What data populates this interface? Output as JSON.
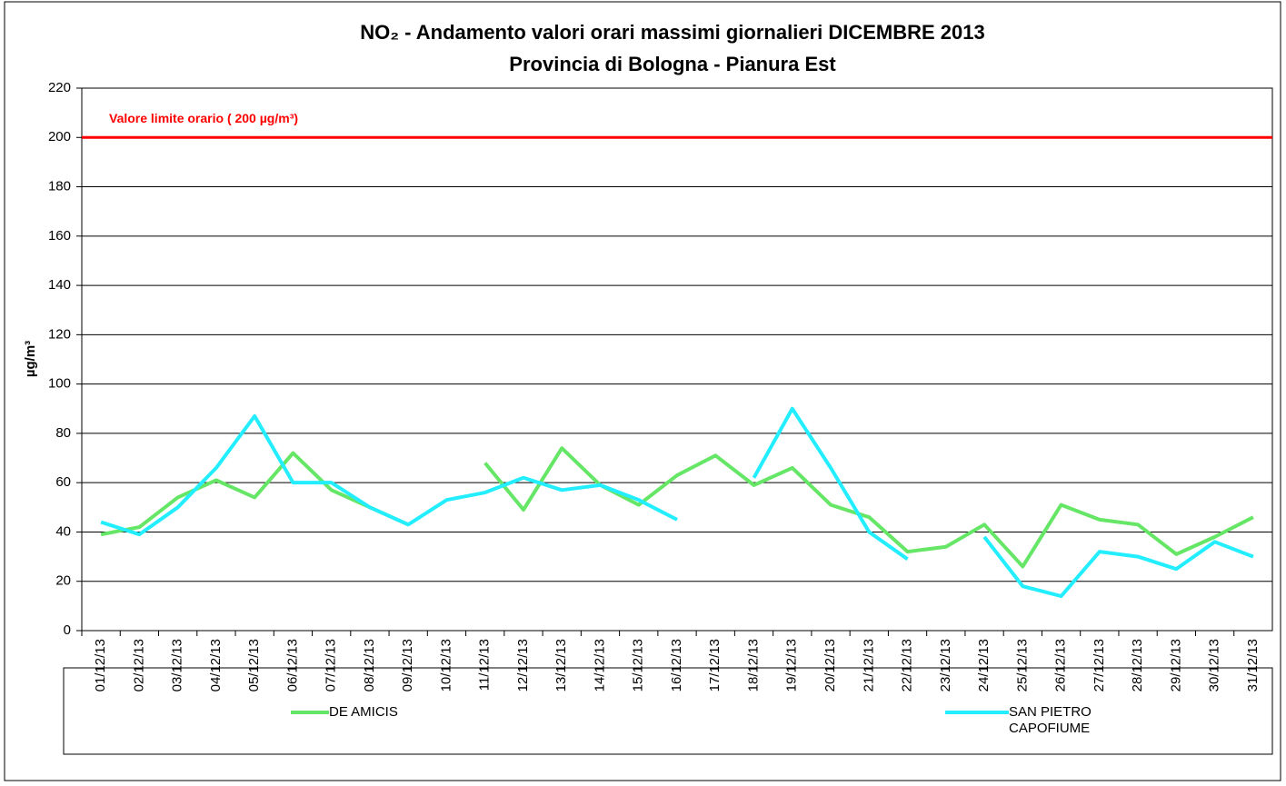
{
  "chart_data": {
    "type": "line",
    "title": "NO₂ - Andamento valori orari massimi giornalieri DICEMBRE 2013",
    "subtitle": "Provincia di Bologna - Pianura Est",
    "y_label": "µg/m³",
    "categories": [
      "01/12/13",
      "02/12/13",
      "03/12/13",
      "04/12/13",
      "05/12/13",
      "06/12/13",
      "07/12/13",
      "08/12/13",
      "09/12/13",
      "10/12/13",
      "11/12/13",
      "12/12/13",
      "13/12/13",
      "14/12/13",
      "15/12/13",
      "16/12/13",
      "17/12/13",
      "18/12/13",
      "19/12/13",
      "20/12/13",
      "21/12/13",
      "22/12/13",
      "23/12/13",
      "24/12/13",
      "25/12/13",
      "26/12/13",
      "27/12/13",
      "28/12/13",
      "29/12/13",
      "30/12/13",
      "31/12/13"
    ],
    "series": [
      {
        "name": "DE AMICIS",
        "color": "#66e666",
        "values": [
          39,
          42,
          54,
          61,
          54,
          72,
          57,
          50,
          43,
          null,
          68,
          49,
          74,
          59,
          51,
          63,
          71,
          59,
          66,
          51,
          46,
          32,
          34,
          43,
          26,
          51,
          45,
          43,
          31,
          38,
          46
        ]
      },
      {
        "name": "SAN PIETRO CAPOFIUME",
        "color": "#22eeff",
        "values": [
          44,
          39,
          50,
          66,
          87,
          60,
          60,
          50,
          43,
          53,
          56,
          62,
          57,
          59,
          53,
          45,
          null,
          62,
          90,
          66,
          40,
          29,
          null,
          38,
          18,
          14,
          32,
          30,
          25,
          36,
          30
        ]
      }
    ],
    "limit": {
      "value": 200,
      "label": "Valore limite orario ( 200 µg/m³)",
      "color": "#ff0000"
    },
    "ylim": [
      0,
      220
    ],
    "yticks": [
      0,
      20,
      40,
      60,
      80,
      100,
      120,
      140,
      160,
      180,
      200,
      220
    ],
    "grid": true
  }
}
